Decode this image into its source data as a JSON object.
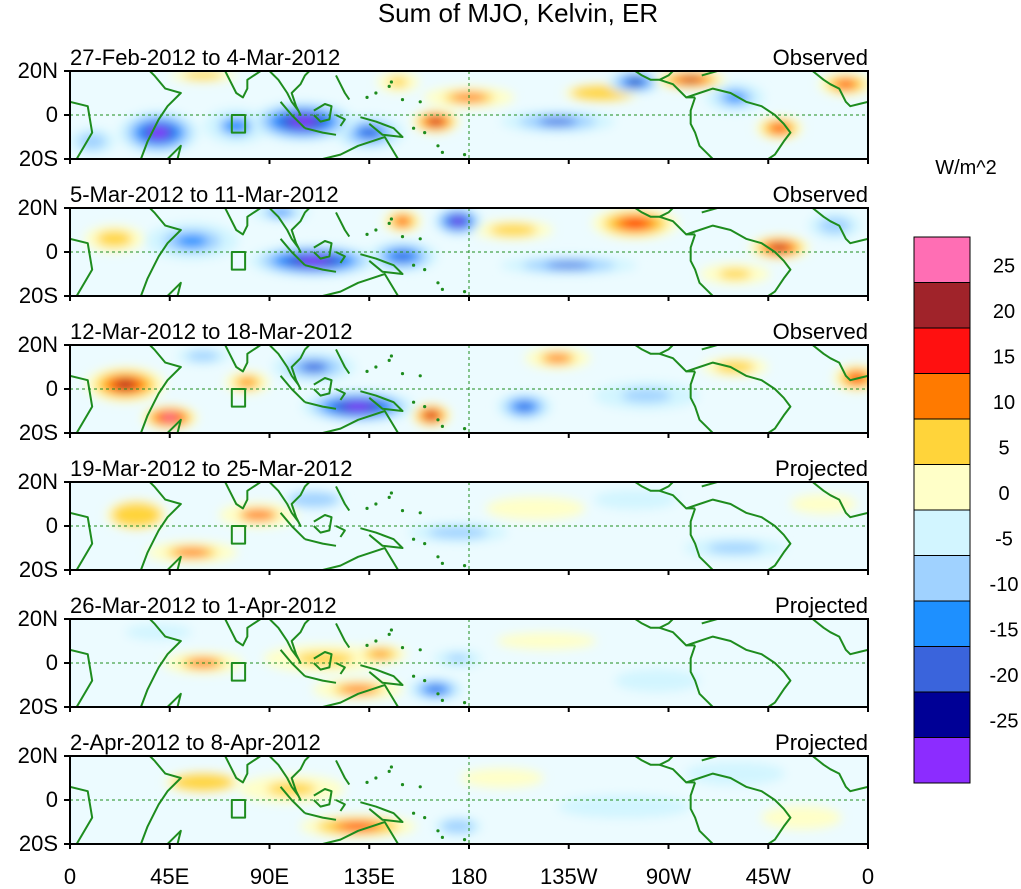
{
  "chart_data": {
    "type": "heatmap",
    "title": "Sum of MJO, Kelvin, ER",
    "units_label": "W/m^2",
    "y_ticks": [
      "20N",
      "0",
      "20S"
    ],
    "x_ticks": [
      "0",
      "45E",
      "90E",
      "135E",
      "180",
      "135W",
      "90W",
      "45W",
      "0"
    ],
    "longitude_range": [
      0,
      360
    ],
    "latitude_range": [
      -20,
      20
    ],
    "colorbar": {
      "labels": [
        "25",
        "20",
        "15",
        "10",
        "5",
        "0",
        "-5",
        "-10",
        "-15",
        "-20",
        "-25"
      ],
      "colors": [
        "#ff6eb4",
        "#a0232a",
        "#ff1010",
        "#ff7a00",
        "#ffd43a",
        "#ffffc8",
        "#d2f5ff",
        "#a0d2ff",
        "#1e90ff",
        "#3a64dc",
        "#000096",
        "#8c2cff"
      ]
    },
    "panels": [
      {
        "date_range": "27-Feb-2012 to 4-Mar-2012",
        "status": "Observed",
        "features": [
          {
            "lon": 105,
            "lat": -3,
            "value": -28,
            "wlon": 26,
            "wlat": 10
          },
          {
            "lon": 40,
            "lat": -8,
            "value": -26,
            "wlon": 20,
            "wlat": 11
          },
          {
            "lon": 75,
            "lat": -5,
            "value": -12,
            "wlon": 18,
            "wlat": 10
          },
          {
            "lon": 135,
            "lat": -8,
            "value": -18,
            "wlon": 18,
            "wlat": 9
          },
          {
            "lon": 165,
            "lat": -3,
            "value": 24,
            "wlon": 12,
            "wlat": 6
          },
          {
            "lon": 180,
            "lat": 8,
            "value": 12,
            "wlon": 25,
            "wlat": 6
          },
          {
            "lon": 148,
            "lat": 15,
            "value": 10,
            "wlon": 12,
            "wlat": 6
          },
          {
            "lon": 255,
            "lat": 15,
            "value": -22,
            "wlon": 14,
            "wlat": 6
          },
          {
            "lon": 220,
            "lat": -3,
            "value": -16,
            "wlon": 30,
            "wlat": 6
          },
          {
            "lon": 300,
            "lat": 8,
            "value": -14,
            "wlon": 16,
            "wlat": 8
          },
          {
            "lon": 320,
            "lat": -6,
            "value": 20,
            "wlon": 12,
            "wlat": 6
          },
          {
            "lon": 280,
            "lat": 16,
            "value": 22,
            "wlon": 18,
            "wlat": 5
          },
          {
            "lon": 350,
            "lat": 14,
            "value": 18,
            "wlon": 14,
            "wlat": 6
          },
          {
            "lon": 10,
            "lat": -12,
            "value": -8,
            "wlon": 14,
            "wlat": 8
          },
          {
            "lon": 240,
            "lat": 10,
            "value": 6,
            "wlon": 25,
            "wlat": 6
          },
          {
            "lon": 60,
            "lat": 18,
            "value": 8,
            "wlon": 20,
            "wlat": 4
          }
        ]
      },
      {
        "date_range": "5-Mar-2012 to 11-Mar-2012",
        "status": "Observed",
        "features": [
          {
            "lon": 110,
            "lat": -4,
            "value": -28,
            "wlon": 32,
            "wlat": 8
          },
          {
            "lon": 175,
            "lat": 14,
            "value": -28,
            "wlon": 12,
            "wlat": 7
          },
          {
            "lon": 55,
            "lat": 5,
            "value": -14,
            "wlon": 25,
            "wlat": 10
          },
          {
            "lon": 150,
            "lat": -2,
            "value": -20,
            "wlon": 18,
            "wlat": 8
          },
          {
            "lon": 150,
            "lat": 14,
            "value": 18,
            "wlon": 10,
            "wlat": 6
          },
          {
            "lon": 255,
            "lat": 13,
            "value": 20,
            "wlon": 22,
            "wlat": 8
          },
          {
            "lon": 225,
            "lat": -6,
            "value": -16,
            "wlon": 36,
            "wlat": 5
          },
          {
            "lon": 320,
            "lat": 2,
            "value": 24,
            "wlon": 15,
            "wlat": 6
          },
          {
            "lon": 300,
            "lat": -10,
            "value": 10,
            "wlon": 20,
            "wlat": 6
          },
          {
            "lon": 20,
            "lat": 6,
            "value": 8,
            "wlon": 18,
            "wlat": 8
          },
          {
            "lon": 345,
            "lat": 12,
            "value": -8,
            "wlon": 16,
            "wlat": 8
          },
          {
            "lon": 95,
            "lat": 18,
            "value": -12,
            "wlon": 16,
            "wlat": 5
          },
          {
            "lon": 200,
            "lat": 10,
            "value": 8,
            "wlon": 24,
            "wlat": 6
          }
        ]
      },
      {
        "date_range": "12-Mar-2012 to 18-Mar-2012",
        "status": "Observed",
        "features": [
          {
            "lon": 25,
            "lat": 2,
            "value": 22,
            "wlon": 20,
            "wlat": 9
          },
          {
            "lon": 45,
            "lat": -13,
            "value": 26,
            "wlon": 14,
            "wlat": 6
          },
          {
            "lon": 130,
            "lat": -8,
            "value": -28,
            "wlon": 28,
            "wlat": 8
          },
          {
            "lon": 110,
            "lat": 10,
            "value": -16,
            "wlon": 22,
            "wlat": 8
          },
          {
            "lon": 163,
            "lat": -12,
            "value": 24,
            "wlon": 10,
            "wlat": 6
          },
          {
            "lon": 205,
            "lat": -8,
            "value": -20,
            "wlon": 14,
            "wlat": 7
          },
          {
            "lon": 220,
            "lat": 14,
            "value": 12,
            "wlon": 18,
            "wlat": 6
          },
          {
            "lon": 80,
            "lat": 3,
            "value": 14,
            "wlon": 12,
            "wlat": 6
          },
          {
            "lon": 355,
            "lat": 5,
            "value": 20,
            "wlon": 12,
            "wlat": 7
          },
          {
            "lon": 260,
            "lat": -3,
            "value": -10,
            "wlon": 30,
            "wlat": 8
          },
          {
            "lon": 300,
            "lat": 10,
            "value": 8,
            "wlon": 20,
            "wlat": 6
          },
          {
            "lon": 60,
            "lat": 15,
            "value": -8,
            "wlon": 16,
            "wlat": 5
          }
        ]
      },
      {
        "date_range": "19-Mar-2012 to 25-Mar-2012",
        "status": "Projected",
        "features": [
          {
            "lon": 85,
            "lat": 5,
            "value": 11,
            "wlon": 22,
            "wlat": 7
          },
          {
            "lon": 55,
            "lat": -12,
            "value": 12,
            "wlon": 25,
            "wlat": 6
          },
          {
            "lon": 30,
            "lat": 5,
            "value": 6,
            "wlon": 20,
            "wlat": 10
          },
          {
            "lon": 175,
            "lat": -3,
            "value": -8,
            "wlon": 30,
            "wlat": 6
          },
          {
            "lon": 210,
            "lat": 8,
            "value": 4,
            "wlon": 30,
            "wlat": 7
          },
          {
            "lon": 300,
            "lat": -10,
            "value": -9,
            "wlon": 30,
            "wlat": 6
          },
          {
            "lon": 110,
            "lat": 12,
            "value": -6,
            "wlon": 20,
            "wlat": 6
          },
          {
            "lon": 340,
            "lat": 10,
            "value": 4,
            "wlon": 20,
            "wlat": 6
          },
          {
            "lon": 255,
            "lat": 12,
            "value": -4,
            "wlon": 25,
            "wlat": 6
          }
        ]
      },
      {
        "date_range": "26-Mar-2012 to 1-Apr-2012",
        "status": "Projected",
        "features": [
          {
            "lon": 115,
            "lat": 2,
            "value": 10,
            "wlon": 35,
            "wlat": 8
          },
          {
            "lon": 140,
            "lat": 4,
            "value": 15,
            "wlon": 14,
            "wlat": 5
          },
          {
            "lon": 60,
            "lat": 0,
            "value": 12,
            "wlon": 22,
            "wlat": 6
          },
          {
            "lon": 130,
            "lat": -12,
            "value": 12,
            "wlon": 25,
            "wlat": 6
          },
          {
            "lon": 165,
            "lat": -12,
            "value": -20,
            "wlon": 14,
            "wlat": 6
          },
          {
            "lon": 175,
            "lat": 2,
            "value": -10,
            "wlon": 14,
            "wlat": 5
          },
          {
            "lon": 215,
            "lat": 10,
            "value": 5,
            "wlon": 35,
            "wlat": 6
          },
          {
            "lon": 265,
            "lat": -8,
            "value": -5,
            "wlon": 30,
            "wlat": 8
          },
          {
            "lon": 40,
            "lat": 14,
            "value": -4,
            "wlon": 20,
            "wlat": 5
          }
        ]
      },
      {
        "date_range": "2-Apr-2012 to 8-Apr-2012",
        "status": "Projected",
        "features": [
          {
            "lon": 130,
            "lat": -12,
            "value": 18,
            "wlon": 30,
            "wlat": 6
          },
          {
            "lon": 100,
            "lat": 5,
            "value": 10,
            "wlon": 30,
            "wlat": 8
          },
          {
            "lon": 60,
            "lat": 8,
            "value": 6,
            "wlon": 25,
            "wlat": 7
          },
          {
            "lon": 175,
            "lat": -12,
            "value": -7,
            "wlon": 15,
            "wlat": 6
          },
          {
            "lon": 195,
            "lat": 10,
            "value": 4,
            "wlon": 25,
            "wlat": 6
          },
          {
            "lon": 250,
            "lat": -3,
            "value": -4,
            "wlon": 40,
            "wlat": 7
          },
          {
            "lon": 300,
            "lat": 12,
            "value": -3,
            "wlon": 25,
            "wlat": 6
          },
          {
            "lon": 330,
            "lat": -8,
            "value": 3,
            "wlon": 20,
            "wlat": 6
          }
        ]
      }
    ]
  }
}
